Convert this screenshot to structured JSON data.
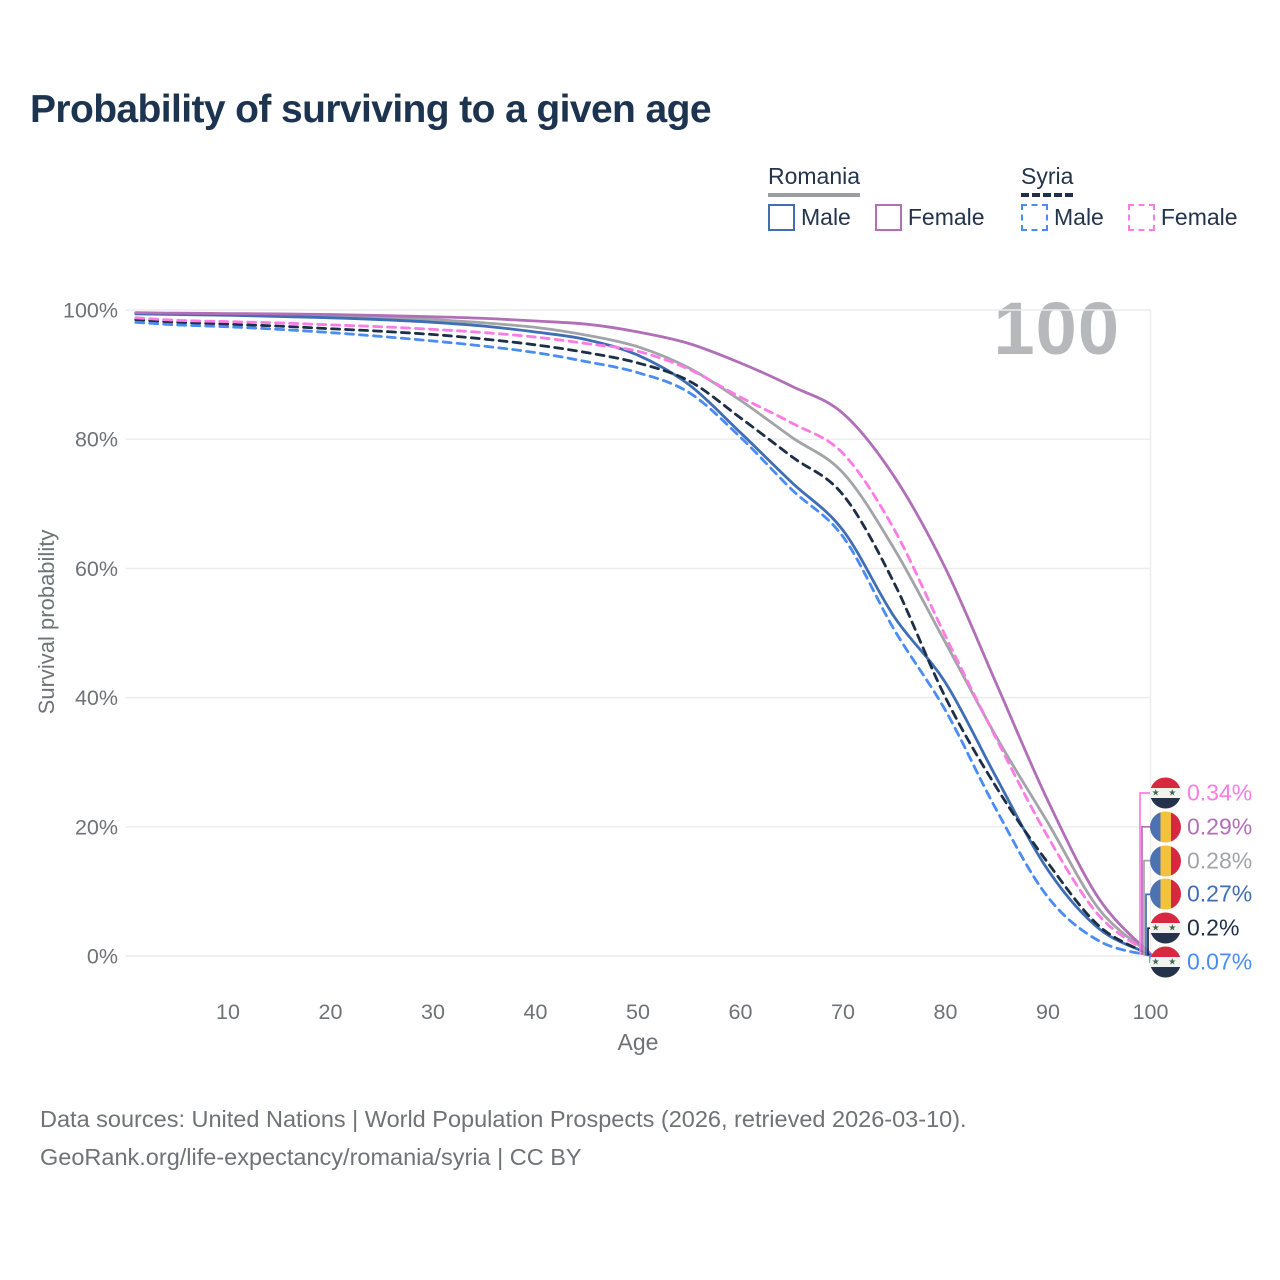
{
  "title": "Probability of surviving to a given age",
  "watermark_age": "100",
  "legend": {
    "groups": [
      {
        "country": "Romania",
        "line_style": "solid",
        "underline_color": "#9b9da1",
        "items": [
          {
            "label": "Male",
            "color": "#3f6eb5",
            "style": "solid"
          },
          {
            "label": "Female",
            "color": "#b06fb6",
            "style": "solid"
          }
        ]
      },
      {
        "country": "Syria",
        "line_style": "dashed",
        "underline_color": "#20304a",
        "items": [
          {
            "label": "Male",
            "color": "#4a8cf3",
            "style": "dashed"
          },
          {
            "label": "Female",
            "color": "#fb7ce4",
            "style": "dashed"
          }
        ]
      }
    ]
  },
  "chart_data": {
    "type": "line",
    "title": "Probability of surviving to a given age",
    "xlabel": "Age",
    "ylabel": "Survival probability",
    "xlim": [
      0,
      100
    ],
    "ylim": [
      0,
      100
    ],
    "grid": "horizontal",
    "x_ticks": [
      10,
      20,
      30,
      40,
      50,
      60,
      70,
      80,
      90,
      100
    ],
    "y_ticks": [
      0,
      20,
      40,
      60,
      80,
      100
    ],
    "y_tick_suffix": "%",
    "x": [
      1,
      5,
      10,
      15,
      20,
      25,
      30,
      35,
      40,
      45,
      50,
      55,
      60,
      65,
      70,
      75,
      80,
      85,
      90,
      95,
      100
    ],
    "series": [
      {
        "key": "romania_total",
        "name": "Romania (both sexes)",
        "country": "romania",
        "color": "#a2a4a7",
        "dash": "solid",
        "values": [
          99.5,
          99.4,
          99.3,
          99.2,
          99.0,
          98.8,
          98.5,
          98.0,
          97.3,
          96.1,
          94.3,
          91.0,
          86.0,
          80.3,
          74.8,
          63.0,
          48.5,
          33.8,
          20.6,
          7.2,
          0.28
        ]
      },
      {
        "key": "romania_male",
        "name": "Romania Male",
        "country": "romania",
        "color": "#3f6eb5",
        "dash": "solid",
        "values": [
          99.4,
          99.3,
          99.2,
          99.0,
          98.8,
          98.5,
          98.1,
          97.5,
          96.6,
          95.4,
          93.0,
          88.4,
          81.0,
          73.3,
          65.9,
          52.5,
          42.3,
          27.5,
          13.3,
          4.2,
          0.27
        ]
      },
      {
        "key": "romania_female",
        "name": "Romania Female",
        "country": "romania",
        "color": "#b06fb6",
        "dash": "solid",
        "values": [
          99.6,
          99.5,
          99.45,
          99.4,
          99.3,
          99.15,
          98.95,
          98.7,
          98.3,
          97.8,
          96.6,
          94.8,
          91.8,
          88.2,
          84.0,
          74.2,
          60.0,
          42.0,
          24.0,
          8.8,
          0.29
        ]
      },
      {
        "key": "syria_total",
        "name": "Syria (both sexes)",
        "country": "syria",
        "color": "#1d2e47",
        "dash": "dashed",
        "values": [
          98.5,
          98.1,
          97.8,
          97.5,
          97.1,
          96.7,
          96.2,
          95.5,
          94.6,
          93.4,
          91.8,
          89.0,
          83.3,
          77.3,
          71.4,
          57.7,
          40.0,
          26.0,
          14.4,
          4.6,
          0.2
        ]
      },
      {
        "key": "syria_male",
        "name": "Syria Male",
        "country": "syria",
        "color": "#4a8cf3",
        "dash": "dashed",
        "values": [
          98.1,
          97.7,
          97.4,
          97.0,
          96.5,
          95.9,
          95.2,
          94.4,
          93.4,
          92.0,
          90.3,
          87.2,
          80.3,
          72.2,
          64.9,
          50.5,
          38.0,
          22.5,
          9.1,
          2.3,
          0.07
        ]
      },
      {
        "key": "syria_female",
        "name": "Syria Female",
        "country": "syria",
        "color": "#fb7ce4",
        "dash": "dashed",
        "values": [
          98.8,
          98.4,
          98.2,
          98.0,
          97.7,
          97.4,
          97.0,
          96.5,
          95.8,
          94.8,
          93.6,
          90.8,
          86.5,
          82.5,
          77.8,
          66.0,
          49.5,
          33.5,
          18.4,
          6.2,
          0.34
        ]
      }
    ],
    "end_labels": [
      {
        "series": "syria_female",
        "value": "0.34%"
      },
      {
        "series": "romania_female",
        "value": "0.29%"
      },
      {
        "series": "romania_total",
        "value": "0.28%"
      },
      {
        "series": "romania_male",
        "value": "0.27%"
      },
      {
        "series": "syria_total",
        "value": "0.2%"
      },
      {
        "series": "syria_male",
        "value": "0.07%"
      }
    ],
    "legend_position": "top-right"
  },
  "footer": {
    "line1": "Data sources: United Nations | World Population Prospects (2026, retrieved 2026-03-10).",
    "line2": "GeoRank.org/life-expectancy/romania/syria | CC BY"
  }
}
